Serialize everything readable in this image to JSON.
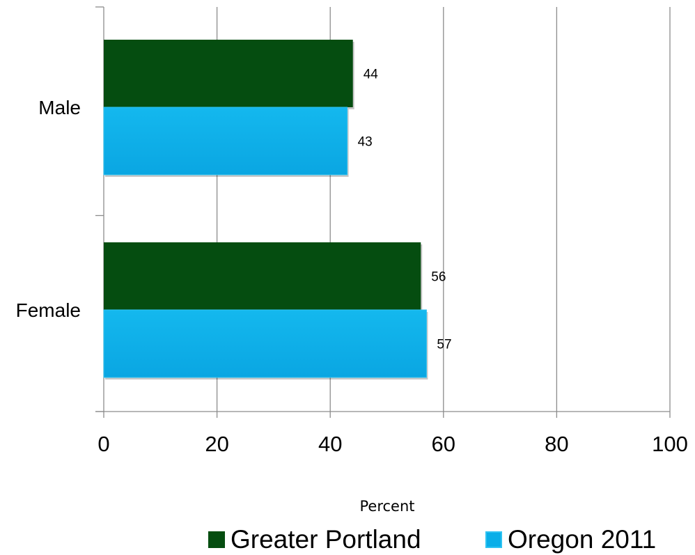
{
  "chart_data": {
    "type": "bar",
    "orientation": "horizontal",
    "categories": [
      "Male",
      "Female"
    ],
    "series": [
      {
        "name": "Greater Portland",
        "values": [
          44,
          56
        ],
        "color": "#054D10"
      },
      {
        "name": "Oregon 2011",
        "values": [
          43,
          57
        ],
        "color": "#0AAEE8"
      }
    ],
    "data_labels": [
      [
        "44",
        "56"
      ],
      [
        "43",
        "57"
      ]
    ],
    "xlabel": "Percent",
    "ylabel": "",
    "xlim": [
      0,
      100
    ],
    "x_ticks": [
      0,
      20,
      40,
      60,
      80,
      100
    ],
    "x_tick_labels": [
      "0",
      "20",
      "40",
      "60",
      "80",
      "100"
    ],
    "grid": true,
    "legend_position": "bottom"
  }
}
